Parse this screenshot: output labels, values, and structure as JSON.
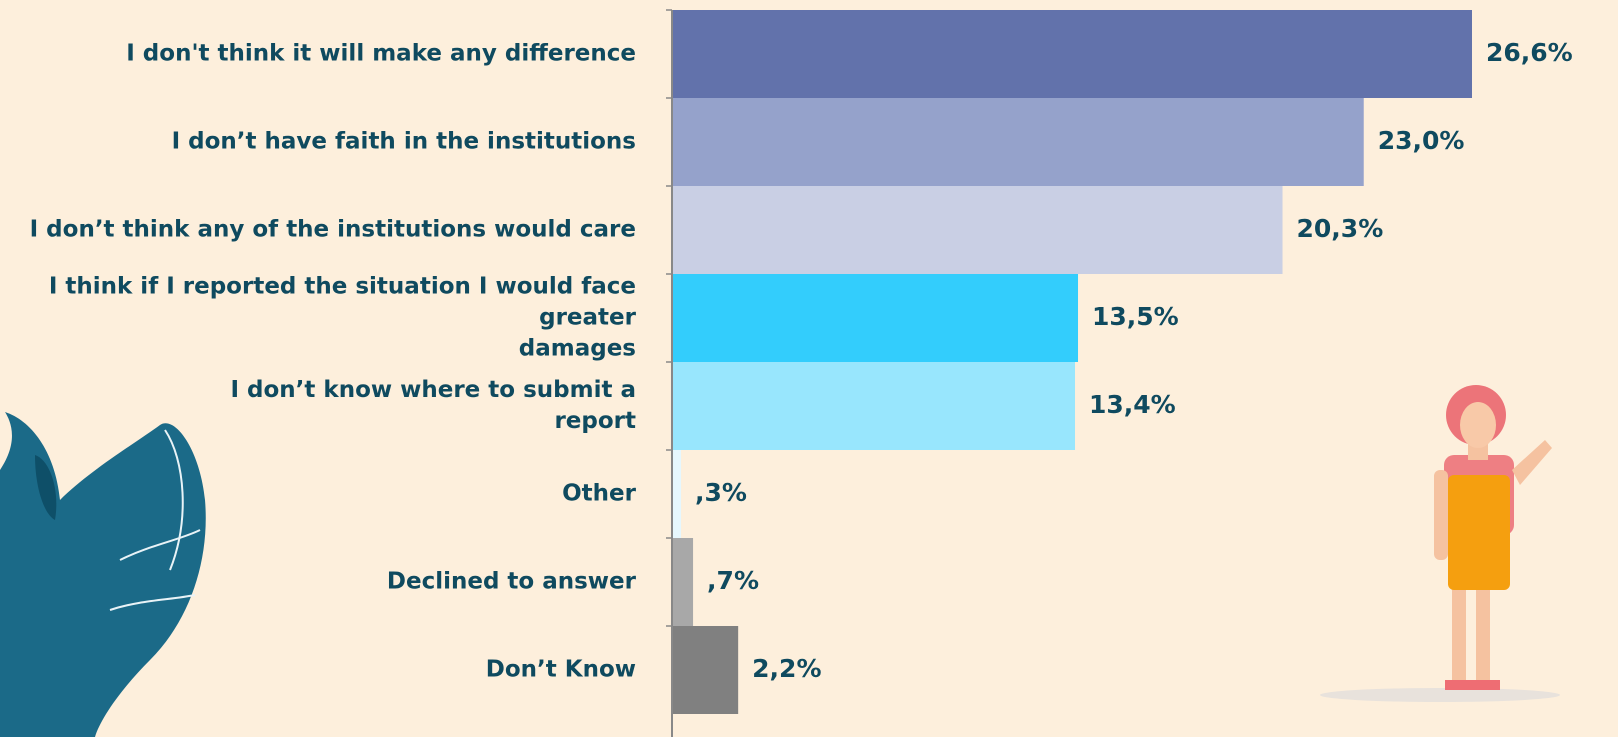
{
  "chart_data": {
    "type": "barh",
    "categories": [
      "I don't think it will make any difference",
      "I don’t have faith in the institutions",
      "I don’t think any of the institutions would care",
      "I think if I reported the situation I would face greater\ndamages",
      "I don’t know where to submit a\nreport",
      "Other",
      "Declined to answer",
      "Don’t Know"
    ],
    "values": [
      26.6,
      23.0,
      20.3,
      13.5,
      13.4,
      0.3,
      0.7,
      2.2
    ],
    "value_labels": [
      "26,6%",
      "23,0%",
      "20,3%",
      "13,5%",
      "13,4%",
      ",3%",
      ",7%",
      "2,2%"
    ],
    "colors": [
      "#6272ab",
      "#95a2cb",
      "#c9cfe4",
      "#33cdfc",
      "#98e6fd",
      "#e6f7fd",
      "#a8a8a8",
      "#808080"
    ]
  }
}
